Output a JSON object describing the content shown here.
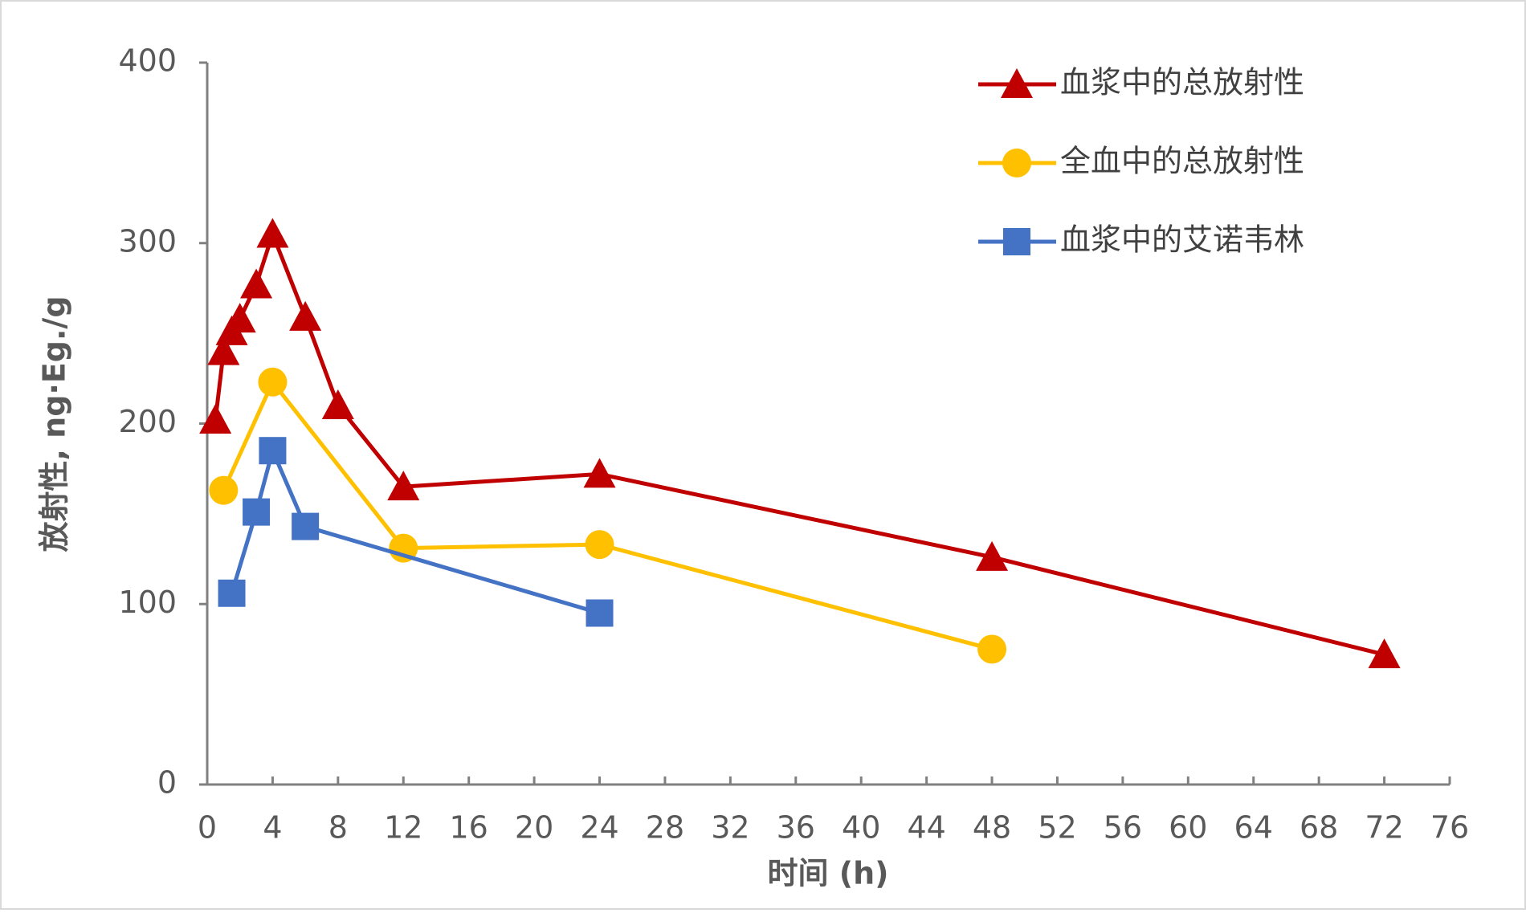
{
  "chart_data": {
    "type": "line",
    "xlabel": "时间 (h)",
    "ylabel": "放射性, ng·Eg./g",
    "xlim": [
      0,
      76
    ],
    "xticks": [
      0,
      4,
      8,
      12,
      16,
      20,
      24,
      28,
      32,
      36,
      40,
      44,
      48,
      52,
      56,
      60,
      64,
      68,
      72,
      76
    ],
    "ylim": [
      0,
      400
    ],
    "yticks": [
      0,
      100,
      200,
      300,
      400
    ],
    "grid": false,
    "legend": "upper right",
    "series": [
      {
        "name": "血浆中的总放射性",
        "color": "#c00000",
        "marker": "triangle",
        "x": [
          0.5,
          1,
          1.5,
          2,
          3,
          4,
          6,
          8,
          12,
          24,
          48,
          72
        ],
        "values": [
          202,
          240,
          251,
          258,
          277,
          305,
          259,
          210,
          165,
          172,
          126,
          72
        ]
      },
      {
        "name": "全血中的总放射性",
        "color": "#ffc000",
        "marker": "circle",
        "x": [
          1,
          4,
          12,
          24,
          48
        ],
        "values": [
          163,
          223,
          131,
          133,
          75
        ]
      },
      {
        "name": "血浆中的艾诺韦林",
        "color": "#4472c4",
        "marker": "square",
        "x": [
          1.5,
          3,
          4,
          6,
          24
        ],
        "values": [
          106,
          151,
          185,
          143,
          95
        ]
      }
    ]
  }
}
